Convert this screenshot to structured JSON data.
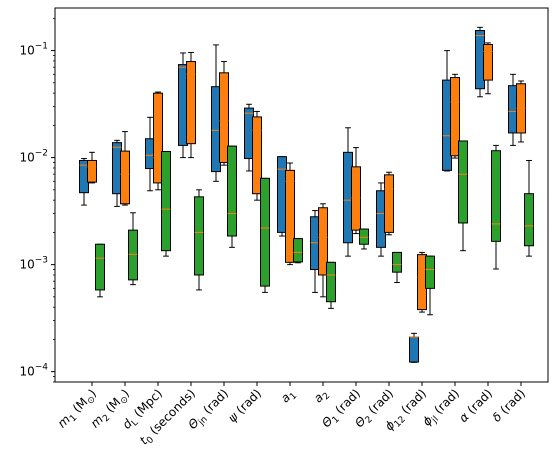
{
  "chart_data": {
    "type": "box",
    "yscale": "log",
    "ylim": [
      8e-05,
      0.25
    ],
    "yticks": [
      {
        "value": 0.0001,
        "base": "10",
        "exp": "−4"
      },
      {
        "value": 0.001,
        "base": "10",
        "exp": "−3"
      },
      {
        "value": 0.01,
        "base": "10",
        "exp": "−2"
      },
      {
        "value": 0.1,
        "base": "10",
        "exp": "−1"
      }
    ],
    "categories": [
      {
        "main": "m",
        "sub": "1",
        "rest": " (M",
        "sub2": "⊙",
        "end": ")"
      },
      {
        "main": "m",
        "sub": "2",
        "rest": " (M",
        "sub2": "⊙",
        "end": ")"
      },
      {
        "main": "d",
        "sub": "L",
        "rest": " (Mpc)"
      },
      {
        "main": "t",
        "sub": "0",
        "rest": " (seconds)"
      },
      {
        "main": "Θ",
        "sub": "jn",
        "rest": " (rad)"
      },
      {
        "main": "ψ",
        "sub": "",
        "rest": " (rad)"
      },
      {
        "main": "a",
        "sub": "1",
        "rest": ""
      },
      {
        "main": "a",
        "sub": "2",
        "rest": ""
      },
      {
        "main": "Θ",
        "sub": "1",
        "rest": " (rad)"
      },
      {
        "main": "Θ",
        "sub": "2",
        "rest": " (rad)"
      },
      {
        "main": "ϕ",
        "sub": "12",
        "rest": " (rad)"
      },
      {
        "main": "ϕ",
        "sub": "jl",
        "rest": " (rad)"
      },
      {
        "main": "α",
        "sub": "",
        "rest": " (rad)"
      },
      {
        "main": "δ",
        "sub": "",
        "rest": " (rad)"
      }
    ],
    "series": [
      {
        "color": "#1f77b4",
        "median_color": "#ff7f0e",
        "boxes": [
          {
            "wlo": 0.0036,
            "q1": 0.0047,
            "med": 0.0085,
            "q3": 0.0094,
            "whi": 0.0098
          },
          {
            "wlo": 0.0035,
            "q1": 0.0046,
            "med": 0.0125,
            "q3": 0.0138,
            "whi": 0.0145
          },
          {
            "wlo": 0.0049,
            "q1": 0.0079,
            "med": 0.0105,
            "q3": 0.015,
            "whi": 0.0238
          },
          {
            "wlo": 0.01,
            "q1": 0.013,
            "med": 0.07,
            "q3": 0.074,
            "whi": 0.095
          },
          {
            "wlo": 0.006,
            "q1": 0.0074,
            "med": 0.018,
            "q3": 0.046,
            "whi": 0.113
          },
          {
            "wlo": 0.0075,
            "q1": 0.0098,
            "med": 0.026,
            "q3": 0.029,
            "whi": 0.0315
          },
          {
            "wlo": 0.00185,
            "q1": 0.002,
            "med": 0.0078,
            "q3": 0.0102,
            "whi": 0.0102
          },
          {
            "wlo": 0.00055,
            "q1": 0.0009,
            "med": 0.0016,
            "q3": 0.0028,
            "whi": 0.0032
          },
          {
            "wlo": 0.0012,
            "q1": 0.0016,
            "med": 0.004,
            "q3": 0.0112,
            "whi": 0.019
          },
          {
            "wlo": 0.0012,
            "q1": 0.00145,
            "med": 0.003,
            "q3": 0.0049,
            "whi": 0.0058
          },
          {
            "wlo": 0.000122,
            "q1": 0.000123,
            "med": 0.00021,
            "q3": 0.00021,
            "whi": 0.000228
          },
          {
            "wlo": 0.0075,
            "q1": 0.0076,
            "med": 0.016,
            "q3": 0.053,
            "whi": 0.1
          },
          {
            "wlo": 0.037,
            "q1": 0.044,
            "med": 0.138,
            "q3": 0.154,
            "whi": 0.165
          },
          {
            "wlo": 0.013,
            "q1": 0.017,
            "med": 0.027,
            "q3": 0.047,
            "whi": 0.06
          }
        ]
      },
      {
        "color": "#ff7f0e",
        "median_color": "#ff7f0e",
        "boxes": [
          {
            "wlo": 0.0058,
            "q1": 0.0059,
            "med": 0.0082,
            "q3": 0.0094,
            "whi": 0.0112
          },
          {
            "wlo": 0.0036,
            "q1": 0.0037,
            "med": 0.007,
            "q3": 0.0115,
            "whi": 0.0175
          },
          {
            "wlo": 0.005,
            "q1": 0.0058,
            "med": 0.01,
            "q3": 0.04,
            "whi": 0.041
          },
          {
            "wlo": 0.01,
            "q1": 0.0135,
            "med": 0.06,
            "q3": 0.079,
            "whi": 0.096
          },
          {
            "wlo": 0.0085,
            "q1": 0.009,
            "med": 0.022,
            "q3": 0.062,
            "whi": 0.079
          },
          {
            "wlo": 0.004,
            "q1": 0.0046,
            "med": 0.018,
            "q3": 0.024,
            "whi": 0.027
          },
          {
            "wlo": 0.001,
            "q1": 0.00105,
            "med": 0.006,
            "q3": 0.0076,
            "whi": 0.0089
          },
          {
            "wlo": 0.0005,
            "q1": 0.0008,
            "med": 0.0018,
            "q3": 0.0034,
            "whi": 0.0037
          },
          {
            "wlo": 0.00195,
            "q1": 0.0021,
            "med": 0.0042,
            "q3": 0.0082,
            "whi": 0.0124
          },
          {
            "wlo": 0.0019,
            "q1": 0.002,
            "med": 0.0051,
            "q3": 0.0069,
            "whi": 0.0073
          },
          {
            "wlo": 0.00036,
            "q1": 0.00038,
            "med": 0.00076,
            "q3": 0.00124,
            "whi": 0.0013
          },
          {
            "wlo": 0.0099,
            "q1": 0.0104,
            "med": 0.033,
            "q3": 0.056,
            "whi": 0.06
          },
          {
            "wlo": 0.0395,
            "q1": 0.053,
            "med": 0.098,
            "q3": 0.114,
            "whi": 0.118
          },
          {
            "wlo": 0.014,
            "q1": 0.017,
            "med": 0.029,
            "q3": 0.049,
            "whi": 0.052
          }
        ]
      },
      {
        "color": "#2ca02c",
        "median_color": "#ff7f0e",
        "boxes": [
          {
            "wlo": 0.0005,
            "q1": 0.00058,
            "med": 0.00115,
            "q3": 0.00155,
            "whi": 0.00155
          },
          {
            "wlo": 0.00065,
            "q1": 0.00072,
            "med": 0.00125,
            "q3": 0.0021,
            "whi": 0.00305
          },
          {
            "wlo": 0.0012,
            "q1": 0.00135,
            "med": 0.0033,
            "q3": 0.0114,
            "whi": 0.0114
          },
          {
            "wlo": 0.00058,
            "q1": 0.0008,
            "med": 0.002,
            "q3": 0.0043,
            "whi": 0.005
          },
          {
            "wlo": 0.00145,
            "q1": 0.00185,
            "med": 0.003,
            "q3": 0.0128,
            "whi": 0.0128
          },
          {
            "wlo": 0.00055,
            "q1": 0.00063,
            "med": 0.0022,
            "q3": 0.0064,
            "whi": 0.0064
          },
          {
            "wlo": 0.00104,
            "q1": 0.00106,
            "med": 0.0013,
            "q3": 0.00175,
            "whi": 0.00175
          },
          {
            "wlo": 0.00039,
            "q1": 0.00045,
            "med": 0.0008,
            "q3": 0.00105,
            "whi": 0.00105
          },
          {
            "wlo": 0.0014,
            "q1": 0.00155,
            "med": 0.0018,
            "q3": 0.00215,
            "whi": 0.00215
          },
          {
            "wlo": 0.00068,
            "q1": 0.00085,
            "med": 0.001,
            "q3": 0.0013,
            "whi": 0.0013
          },
          {
            "wlo": 0.00034,
            "q1": 0.0006,
            "med": 0.0009,
            "q3": 0.0012,
            "whi": 0.0012
          },
          {
            "wlo": 0.00135,
            "q1": 0.00245,
            "med": 0.007,
            "q3": 0.0143,
            "whi": 0.0143
          },
          {
            "wlo": 0.00091,
            "q1": 0.00165,
            "med": 0.0024,
            "q3": 0.0116,
            "whi": 0.013
          },
          {
            "wlo": 0.0012,
            "q1": 0.0015,
            "med": 0.0023,
            "q3": 0.0046,
            "whi": 0.0094
          }
        ]
      }
    ]
  }
}
